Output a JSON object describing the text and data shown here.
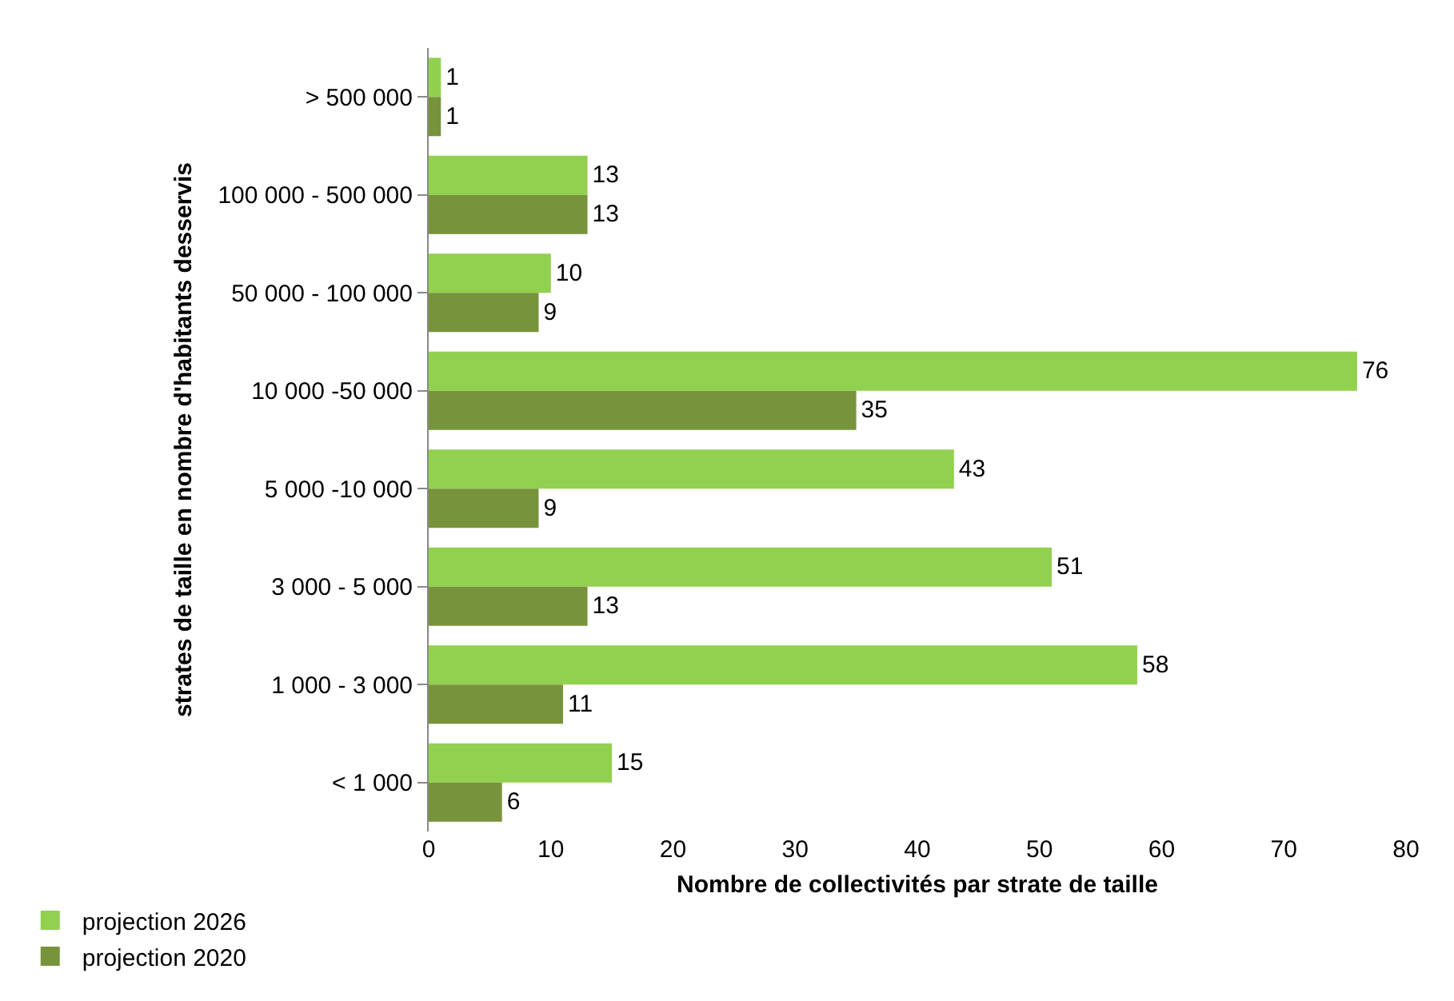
{
  "chart_data": {
    "type": "bar",
    "orientation": "horizontal",
    "xlabel": "Nombre de collectivités par strate de taille",
    "ylabel": "strates de taille en nombre d'habitants desservis",
    "categories": [
      "> 500 000",
      "100 000 - 500 000",
      "50 000 - 100 000",
      "10 000 -50 000",
      "5 000 -10 000",
      "3 000 - 5 000",
      "1 000 - 3 000",
      "< 1 000"
    ],
    "series": [
      {
        "name": "projection 2026",
        "color": "#92d050",
        "values": [
          1,
          13,
          10,
          76,
          43,
          51,
          58,
          15
        ]
      },
      {
        "name": "projection 2020",
        "color": "#77933c",
        "values": [
          1,
          13,
          9,
          35,
          9,
          13,
          11,
          6
        ]
      }
    ],
    "xlim": [
      0,
      80
    ],
    "xticks": [
      0,
      10,
      20,
      30,
      40,
      50,
      60,
      70,
      80
    ],
    "grid": false,
    "legend": "bottom left",
    "data_labels": true
  }
}
